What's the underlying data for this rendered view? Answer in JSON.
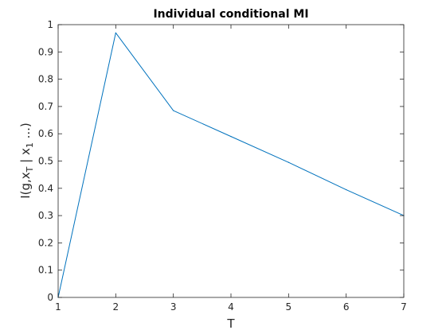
{
  "chart_data": {
    "type": "line",
    "title": "Individual conditional MI",
    "xlabel": "T",
    "ylabel": {
      "main": "I(g,x",
      "sub1": "T",
      "mid": " | x",
      "sub2": "1",
      "tail": " ...)"
    },
    "xlim": [
      1,
      7
    ],
    "ylim": [
      0,
      1
    ],
    "xticks": [
      1,
      2,
      3,
      4,
      5,
      6,
      7
    ],
    "xtick_labels": [
      "1",
      "2",
      "3",
      "4",
      "5",
      "6",
      "7"
    ],
    "yticks": [
      0,
      0.1,
      0.2,
      0.3,
      0.4,
      0.5,
      0.6,
      0.7,
      0.8,
      0.9,
      1
    ],
    "ytick_labels": [
      "0",
      "0.1",
      "0.2",
      "0.3",
      "0.4",
      "0.5",
      "0.6",
      "0.7",
      "0.8",
      "0.9",
      "1"
    ],
    "grid": false,
    "box": true,
    "series": [
      {
        "x": [
          1,
          2,
          3,
          4,
          5,
          6,
          7
        ],
        "values": [
          0.0,
          0.97,
          0.685,
          0.59,
          0.495,
          0.395,
          0.3
        ],
        "color": "#0072BD"
      }
    ]
  }
}
